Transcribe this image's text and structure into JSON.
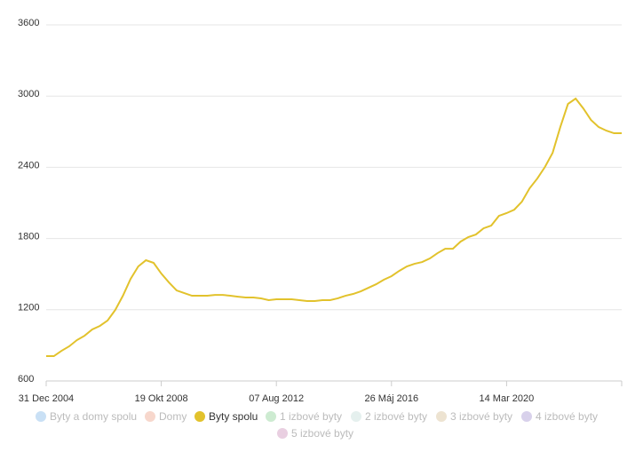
{
  "chart_data": {
    "type": "line",
    "categories": [
      "31 Dec 2004",
      null,
      null,
      null,
      null,
      null,
      null,
      null,
      null,
      null,
      null,
      null,
      null,
      null,
      null,
      "19 Okt 2008",
      null,
      null,
      null,
      null,
      null,
      null,
      null,
      null,
      null,
      null,
      null,
      null,
      null,
      null,
      "07 Aug 2012",
      null,
      null,
      null,
      null,
      null,
      null,
      null,
      null,
      null,
      null,
      null,
      null,
      null,
      null,
      "26 Máj 2016",
      null,
      null,
      null,
      null,
      null,
      null,
      null,
      null,
      null,
      null,
      null,
      null,
      null,
      null,
      "14 Mar 2020",
      null,
      null,
      null,
      null,
      null,
      null,
      null,
      null,
      null,
      null,
      null,
      null,
      null,
      null,
      null
    ],
    "series": [
      {
        "name": "Byty a domy spolu",
        "color": "#c9e0f5",
        "visible": false
      },
      {
        "name": "Domy",
        "color": "#f7d7cc",
        "visible": false
      },
      {
        "name": "Byty spolu",
        "color": "#e2c22c",
        "visible": true,
        "values": [
          809,
          809,
          854,
          892,
          944,
          981,
          1034,
          1064,
          1109,
          1198,
          1318,
          1460,
          1565,
          1617,
          1595,
          1505,
          1430,
          1363,
          1340,
          1318,
          1318,
          1318,
          1325,
          1325,
          1318,
          1310,
          1303,
          1303,
          1296,
          1281,
          1288,
          1288,
          1288,
          1281,
          1273,
          1273,
          1281,
          1281,
          1296,
          1318,
          1333,
          1355,
          1385,
          1415,
          1453,
          1483,
          1527,
          1565,
          1587,
          1602,
          1632,
          1677,
          1714,
          1714,
          1774,
          1812,
          1834,
          1886,
          1909,
          1991,
          2014,
          2043,
          2111,
          2223,
          2305,
          2403,
          2522,
          2739,
          2934,
          2979,
          2896,
          2799,
          2739,
          2709,
          2687,
          2687
        ]
      },
      {
        "name": "1 izbové byty",
        "color": "#cdebd1",
        "visible": false
      },
      {
        "name": "2 izbové byty",
        "color": "#e5f0ee",
        "visible": false
      },
      {
        "name": "3 izbové byty",
        "color": "#ede3d1",
        "visible": false
      },
      {
        "name": "4 izbové byty",
        "color": "#d8d1eb",
        "visible": false
      },
      {
        "name": "5 izbové byty",
        "color": "#e9cfe1",
        "visible": false
      }
    ],
    "ylim": [
      600,
      3600
    ],
    "yticks": [
      600,
      1200,
      1800,
      2400,
      3000,
      3600
    ],
    "grid": true,
    "legend": "bottom"
  }
}
